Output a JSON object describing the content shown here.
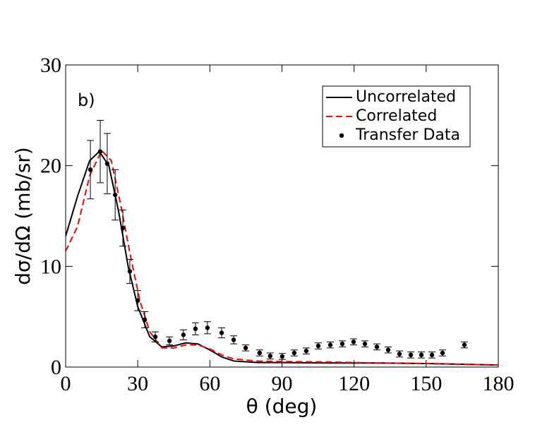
{
  "chart_data": {
    "type": "line",
    "annotation": "b)",
    "xlabel": "θ (deg)",
    "ylabel": "dσ/dΩ (mb/sr)",
    "xlim": [
      0,
      180
    ],
    "xticks": [
      0,
      30,
      60,
      90,
      120,
      150,
      180
    ],
    "ylim": [
      0,
      30
    ],
    "yticks": [
      0,
      10,
      20,
      30
    ],
    "legend": "upper right",
    "series": [
      {
        "name": "Uncorrelated",
        "color": "#000000",
        "dash": "solid",
        "x": [
          0,
          5,
          10,
          14,
          18,
          22,
          26,
          30,
          35,
          40,
          45,
          50,
          55,
          60,
          65,
          70,
          80,
          90,
          110,
          130,
          150,
          180
        ],
        "values": [
          13,
          17,
          20.5,
          21.4,
          20,
          15.5,
          10,
          6,
          3,
          2,
          2.1,
          2.4,
          2.3,
          1.7,
          1.0,
          0.6,
          0.45,
          0.45,
          0.4,
          0.4,
          0.35,
          0.2
        ]
      },
      {
        "name": "Correlated",
        "color": "#ff0000",
        "dash": "dashed",
        "x": [
          0,
          5,
          10,
          15,
          19,
          23,
          27,
          31,
          35,
          40,
          45,
          50,
          55,
          60,
          65,
          70,
          80,
          90,
          110,
          130,
          150,
          180
        ],
        "values": [
          11.5,
          14,
          19,
          21.5,
          20.5,
          16,
          11,
          6.5,
          3.5,
          1.9,
          1.9,
          2.2,
          2.2,
          1.8,
          1.2,
          0.8,
          0.6,
          0.55,
          0.5,
          0.4,
          0.35,
          0.2
        ]
      },
      {
        "name": "Transfer Data",
        "color": "#000000",
        "marker": "point",
        "x": [
          10.3,
          14.4,
          17.3,
          20.6,
          23.8,
          26.7,
          30,
          32.9,
          37.3,
          43.2,
          49,
          54,
          59,
          64.9,
          69.9,
          74.9,
          80.7,
          85.1,
          90.1,
          95.1,
          100.1,
          105.1,
          110.1,
          115.1,
          119.8,
          124.5,
          129.5,
          134.2,
          138.9,
          143.6,
          148,
          152.4,
          156.8,
          165.9
        ],
        "values": [
          19.6,
          21.4,
          20.2,
          17.1,
          13.8,
          9.5,
          6.6,
          4.7,
          3.0,
          2.6,
          3.2,
          3.8,
          3.9,
          3.4,
          2.7,
          1.9,
          1.4,
          1.1,
          1.05,
          1.4,
          1.6,
          2.1,
          2.2,
          2.3,
          2.5,
          2.3,
          2.0,
          1.7,
          1.3,
          1.2,
          1.2,
          1.2,
          1.4,
          2.2
        ],
        "errors": [
          2.9,
          3.1,
          3.0,
          2.5,
          1.8,
          1.2,
          1.0,
          0.8,
          0.5,
          0.4,
          0.5,
          0.6,
          0.6,
          0.5,
          0.4,
          0.3,
          0.3,
          0.3,
          0.3,
          0.3,
          0.3,
          0.3,
          0.3,
          0.3,
          0.3,
          0.3,
          0.3,
          0.3,
          0.3,
          0.3,
          0.3,
          0.3,
          0.3,
          0.3
        ]
      }
    ]
  }
}
